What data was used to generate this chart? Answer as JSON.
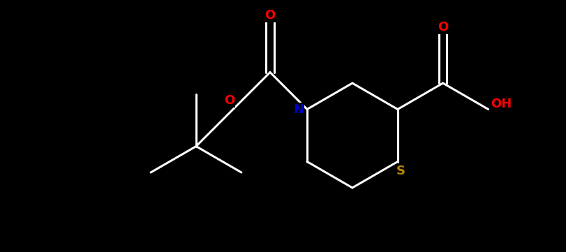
{
  "background_color": "#000000",
  "label_colors": {
    "O": "#ff0000",
    "N": "#0000cd",
    "S": "#b8860b",
    "OH": "#ff0000"
  },
  "bond_color": "#ffffff",
  "figsize": [
    8.12,
    3.61
  ],
  "dpi": 100
}
